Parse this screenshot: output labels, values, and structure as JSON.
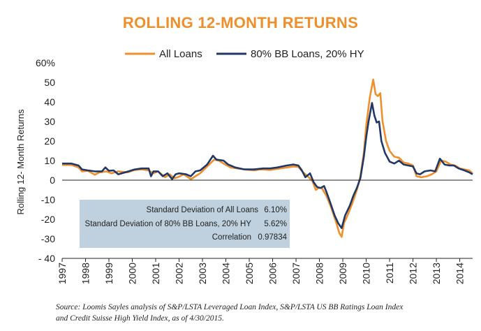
{
  "chart_data": {
    "type": "line",
    "title": "ROLLING 12-MONTH RETURNS",
    "ylabel": "Rolling 12- Month Returns",
    "xlabel": "",
    "ylim": [
      -40,
      60
    ],
    "xlim": [
      1997,
      2014.55
    ],
    "y_ticks": [
      {
        "value": 60,
        "label": "60%"
      },
      {
        "value": 50,
        "label": "50"
      },
      {
        "value": 40,
        "label": "40"
      },
      {
        "value": 30,
        "label": "30"
      },
      {
        "value": 20,
        "label": "20"
      },
      {
        "value": 10,
        "label": "10"
      },
      {
        "value": 0,
        "label": "0"
      },
      {
        "value": -10,
        "label": "-10"
      },
      {
        "value": -20,
        "label": "-20"
      },
      {
        "value": -30,
        "label": "-30"
      },
      {
        "value": -40,
        "label": "- 40"
      }
    ],
    "x_ticks": [
      "1997",
      "1998",
      "1999",
      "2000",
      "2001",
      "2002",
      "2003",
      "2004",
      "2005",
      "2006",
      "2007",
      "2008",
      "2009",
      "2010",
      "2011",
      "2012",
      "2013",
      "2014"
    ],
    "legend": {
      "position": "top-center"
    },
    "series": [
      {
        "name": "All Loans",
        "color": "#ef8f2b",
        "points": [
          [
            1997.0,
            7.8
          ],
          [
            1997.4,
            7.8
          ],
          [
            1997.7,
            6.5
          ],
          [
            1997.85,
            4.5
          ],
          [
            1998.1,
            4.8
          ],
          [
            1998.4,
            2.8
          ],
          [
            1998.6,
            4.0
          ],
          [
            1998.9,
            4.5
          ],
          [
            1999.1,
            3.5
          ],
          [
            1999.4,
            4.5
          ],
          [
            1999.8,
            4.0
          ],
          [
            2000.1,
            5.2
          ],
          [
            2000.4,
            5.5
          ],
          [
            2000.7,
            5.0
          ],
          [
            2000.9,
            3.5
          ],
          [
            2001.1,
            4.5
          ],
          [
            2001.4,
            1.5
          ],
          [
            2001.6,
            3.0
          ],
          [
            2001.8,
            1.0
          ],
          [
            2001.95,
            1.5
          ],
          [
            2002.2,
            3.0
          ],
          [
            2002.5,
            0.5
          ],
          [
            2002.7,
            2.0
          ],
          [
            2002.9,
            3.5
          ],
          [
            2003.2,
            7.0
          ],
          [
            2003.5,
            10.5
          ],
          [
            2003.7,
            10.0
          ],
          [
            2003.9,
            8.5
          ],
          [
            2004.2,
            6.5
          ],
          [
            2004.5,
            6.0
          ],
          [
            2004.8,
            5.5
          ],
          [
            2005.2,
            5.0
          ],
          [
            2005.5,
            5.5
          ],
          [
            2005.9,
            5.2
          ],
          [
            2006.2,
            5.8
          ],
          [
            2006.6,
            6.5
          ],
          [
            2006.9,
            7.0
          ],
          [
            2007.1,
            6.8
          ],
          [
            2007.3,
            4.0
          ],
          [
            2007.5,
            2.0
          ],
          [
            2007.7,
            -0.5
          ],
          [
            2007.85,
            -5.0
          ],
          [
            2007.95,
            -4.0
          ],
          [
            2008.1,
            -4.0
          ],
          [
            2008.3,
            -8.0
          ],
          [
            2008.5,
            -14.0
          ],
          [
            2008.7,
            -21.0
          ],
          [
            2008.85,
            -27.0
          ],
          [
            2008.95,
            -29.0
          ],
          [
            2009.05,
            -22.0
          ],
          [
            2009.2,
            -18.0
          ],
          [
            2009.4,
            -12.0
          ],
          [
            2009.6,
            -5.0
          ],
          [
            2009.75,
            2.0
          ],
          [
            2009.9,
            14.0
          ],
          [
            2010.0,
            28.0
          ],
          [
            2010.15,
            42.0
          ],
          [
            2010.3,
            51.5
          ],
          [
            2010.4,
            44.0
          ],
          [
            2010.5,
            43.0
          ],
          [
            2010.6,
            44.5
          ],
          [
            2010.7,
            30.0
          ],
          [
            2010.85,
            20.0
          ],
          [
            2011.0,
            15.0
          ],
          [
            2011.2,
            12.0
          ],
          [
            2011.4,
            11.5
          ],
          [
            2011.6,
            9.0
          ],
          [
            2011.8,
            8.5
          ],
          [
            2012.0,
            7.5
          ],
          [
            2012.15,
            2.0
          ],
          [
            2012.35,
            1.5
          ],
          [
            2012.6,
            2.0
          ],
          [
            2012.8,
            3.0
          ],
          [
            2013.0,
            4.5
          ],
          [
            2013.2,
            10.0
          ],
          [
            2013.4,
            9.5
          ],
          [
            2013.6,
            8.0
          ],
          [
            2013.8,
            7.5
          ],
          [
            2014.0,
            6.0
          ],
          [
            2014.2,
            5.5
          ],
          [
            2014.4,
            5.0
          ],
          [
            2014.55,
            3.5
          ]
        ]
      },
      {
        "name": "80% BB Loans, 20% HY",
        "color": "#1f3868",
        "points": [
          [
            1997.0,
            8.5
          ],
          [
            1997.4,
            8.5
          ],
          [
            1997.7,
            7.5
          ],
          [
            1997.85,
            5.5
          ],
          [
            1998.1,
            5.0
          ],
          [
            1998.4,
            4.5
          ],
          [
            1998.7,
            4.5
          ],
          [
            1998.85,
            6.5
          ],
          [
            1999.0,
            4.8
          ],
          [
            1999.2,
            5.0
          ],
          [
            1999.4,
            3.0
          ],
          [
            1999.7,
            4.0
          ],
          [
            2000.1,
            5.5
          ],
          [
            2000.4,
            6.0
          ],
          [
            2000.7,
            6.0
          ],
          [
            2000.8,
            2.0
          ],
          [
            2000.9,
            4.5
          ],
          [
            2001.1,
            4.5
          ],
          [
            2001.3,
            2.0
          ],
          [
            2001.5,
            3.5
          ],
          [
            2001.7,
            0.5
          ],
          [
            2001.85,
            3.0
          ],
          [
            2002.0,
            3.5
          ],
          [
            2002.3,
            3.0
          ],
          [
            2002.5,
            2.0
          ],
          [
            2002.7,
            4.5
          ],
          [
            2002.9,
            5.0
          ],
          [
            2003.2,
            8.0
          ],
          [
            2003.45,
            12.5
          ],
          [
            2003.6,
            10.5
          ],
          [
            2003.9,
            10.0
          ],
          [
            2004.1,
            8.0
          ],
          [
            2004.4,
            6.5
          ],
          [
            2004.8,
            5.5
          ],
          [
            2005.2,
            5.5
          ],
          [
            2005.6,
            6.0
          ],
          [
            2005.9,
            6.0
          ],
          [
            2006.2,
            6.5
          ],
          [
            2006.6,
            7.5
          ],
          [
            2006.9,
            8.0
          ],
          [
            2007.1,
            7.5
          ],
          [
            2007.25,
            5.0
          ],
          [
            2007.4,
            1.5
          ],
          [
            2007.6,
            3.5
          ],
          [
            2007.75,
            -1.0
          ],
          [
            2007.9,
            -3.5
          ],
          [
            2008.05,
            -4.0
          ],
          [
            2008.2,
            -3.0
          ],
          [
            2008.3,
            -6.0
          ],
          [
            2008.45,
            -11.0
          ],
          [
            2008.65,
            -18.0
          ],
          [
            2008.8,
            -22.0
          ],
          [
            2008.95,
            -24.5
          ],
          [
            2009.1,
            -18.0
          ],
          [
            2009.3,
            -13.0
          ],
          [
            2009.45,
            -8.0
          ],
          [
            2009.6,
            -4.0
          ],
          [
            2009.75,
            1.0
          ],
          [
            2009.9,
            12.0
          ],
          [
            2010.0,
            22.0
          ],
          [
            2010.1,
            30.0
          ],
          [
            2010.25,
            39.5
          ],
          [
            2010.35,
            33.0
          ],
          [
            2010.45,
            29.5
          ],
          [
            2010.55,
            30.0
          ],
          [
            2010.65,
            20.0
          ],
          [
            2010.8,
            14.0
          ],
          [
            2011.0,
            9.5
          ],
          [
            2011.2,
            8.5
          ],
          [
            2011.4,
            10.0
          ],
          [
            2011.6,
            8.0
          ],
          [
            2011.8,
            7.5
          ],
          [
            2012.0,
            7.0
          ],
          [
            2012.15,
            3.5
          ],
          [
            2012.3,
            3.0
          ],
          [
            2012.5,
            4.5
          ],
          [
            2012.75,
            5.0
          ],
          [
            2012.95,
            4.5
          ],
          [
            2013.15,
            11.0
          ],
          [
            2013.35,
            8.0
          ],
          [
            2013.55,
            7.5
          ],
          [
            2013.75,
            7.5
          ],
          [
            2013.95,
            6.0
          ],
          [
            2014.2,
            5.0
          ],
          [
            2014.4,
            4.0
          ],
          [
            2014.55,
            3.0
          ]
        ]
      }
    ],
    "annotations": [
      {
        "label": "Standard Deviation of All Loans",
        "value": "6.10%"
      },
      {
        "label": "Standard Deviation of 80% BB Loans, 20% HY",
        "value": "5.62%"
      },
      {
        "label": "Correlation",
        "value": "0.97834"
      }
    ],
    "stats_box_color": "#bfd1de"
  },
  "source_note": {
    "line1": "Source: Loomis Sayles analysis of S&P/LSTA Leveraged Loan Index, S&P/LSTA US BB Ratings Loan Index",
    "line2": "and Credit Suisse High Yield Index, as of 4/30/2015."
  }
}
